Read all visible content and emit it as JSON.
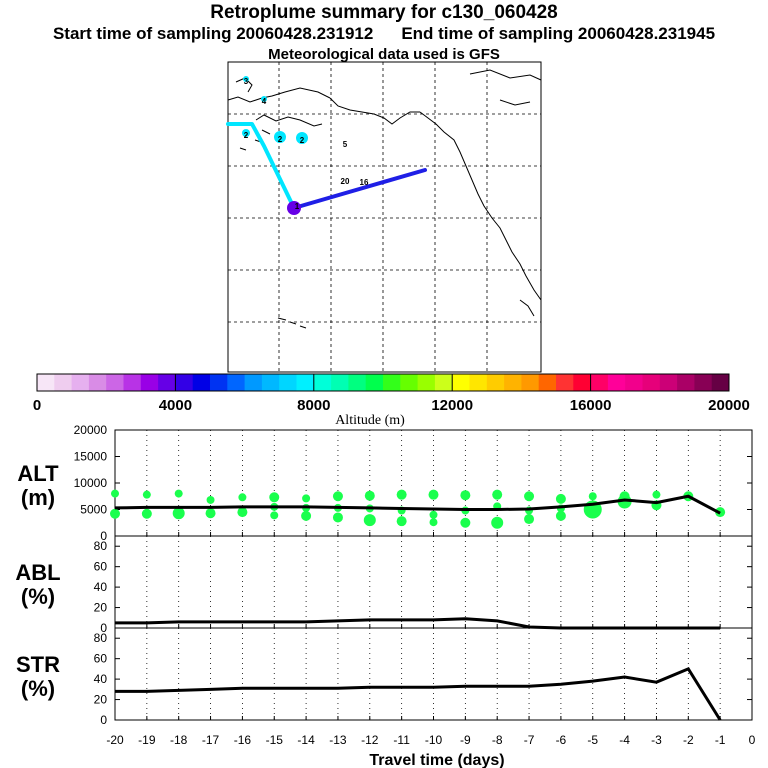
{
  "header": {
    "title": "Retroplume summary for c130_060428",
    "start_label": "Start time of sampling 20060428.231912",
    "end_label": "End time of sampling 20060428.231945",
    "met_label": "Meteorological data used is GFS"
  },
  "map": {
    "trajectory_labels": [
      "3",
      "4",
      "2",
      "2",
      "2",
      "2",
      "5",
      "20",
      "16",
      "1"
    ]
  },
  "colorbar": {
    "title": "Altitude (m)",
    "tick_labels": [
      "0",
      "4000",
      "8000",
      "12000",
      "16000",
      "20000"
    ],
    "min": 0,
    "max": 20000,
    "colors": [
      "#f7e6f7",
      "#efcdef",
      "#e6b0ef",
      "#d98ce6",
      "#cc66e6",
      "#b833e6",
      "#9900e6",
      "#6600e6",
      "#3300e6",
      "#0000e6",
      "#0033f2",
      "#0066ff",
      "#0099ff",
      "#00b8ff",
      "#00d6ff",
      "#00f0ff",
      "#00ffd9",
      "#00ffb3",
      "#00ff80",
      "#00ff4d",
      "#33ff1a",
      "#66ff00",
      "#99ff00",
      "#ccff1a",
      "#ffff00",
      "#ffe600",
      "#ffcc00",
      "#ffb300",
      "#ff9900",
      "#ff6600",
      "#ff3333",
      "#ff0033",
      "#ff0066",
      "#ff0099",
      "#f2008c",
      "#e6007a",
      "#cc0077",
      "#aa0066",
      "#880055",
      "#660044"
    ]
  },
  "chart_data": [
    {
      "type": "scatter",
      "name": "ALT",
      "ylabel": "ALT\n(m)",
      "ylabel_line1": "ALT",
      "ylabel_line2": "(m)",
      "ylim": [
        0,
        20000
      ],
      "yticks": [
        "0",
        "5000",
        "10000",
        "15000",
        "20000"
      ],
      "xlim": [
        -20,
        0
      ],
      "points": [
        {
          "x": -20,
          "y": 8000,
          "size": 4
        },
        {
          "x": -20,
          "y": 4200,
          "size": 5
        },
        {
          "x": -19,
          "y": 7800,
          "size": 4
        },
        {
          "x": -19,
          "y": 4200,
          "size": 5
        },
        {
          "x": -18,
          "y": 8000,
          "size": 4
        },
        {
          "x": -18,
          "y": 4300,
          "size": 6
        },
        {
          "x": -17,
          "y": 6800,
          "size": 4
        },
        {
          "x": -17,
          "y": 4300,
          "size": 5
        },
        {
          "x": -16,
          "y": 7300,
          "size": 4
        },
        {
          "x": -16,
          "y": 4500,
          "size": 5
        },
        {
          "x": -15,
          "y": 7300,
          "size": 5
        },
        {
          "x": -15,
          "y": 5500,
          "size": 4
        },
        {
          "x": -15,
          "y": 3900,
          "size": 4
        },
        {
          "x": -14,
          "y": 7100,
          "size": 4
        },
        {
          "x": -14,
          "y": 5300,
          "size": 4
        },
        {
          "x": -14,
          "y": 3800,
          "size": 5
        },
        {
          "x": -13,
          "y": 7500,
          "size": 5
        },
        {
          "x": -13,
          "y": 5300,
          "size": 4
        },
        {
          "x": -13,
          "y": 3500,
          "size": 5
        },
        {
          "x": -12,
          "y": 7600,
          "size": 5
        },
        {
          "x": -12,
          "y": 5200,
          "size": 4
        },
        {
          "x": -12,
          "y": 3000,
          "size": 6
        },
        {
          "x": -11,
          "y": 7800,
          "size": 5
        },
        {
          "x": -11,
          "y": 4800,
          "size": 4
        },
        {
          "x": -11,
          "y": 2800,
          "size": 5
        },
        {
          "x": -10,
          "y": 7800,
          "size": 5
        },
        {
          "x": -10,
          "y": 4000,
          "size": 4
        },
        {
          "x": -10,
          "y": 2600,
          "size": 4
        },
        {
          "x": -9,
          "y": 7700,
          "size": 5
        },
        {
          "x": -9,
          "y": 4800,
          "size": 4
        },
        {
          "x": -9,
          "y": 2500,
          "size": 5
        },
        {
          "x": -8,
          "y": 7800,
          "size": 5
        },
        {
          "x": -8,
          "y": 5600,
          "size": 4
        },
        {
          "x": -8,
          "y": 2500,
          "size": 6
        },
        {
          "x": -7,
          "y": 7500,
          "size": 5
        },
        {
          "x": -7,
          "y": 4800,
          "size": 4
        },
        {
          "x": -7,
          "y": 3200,
          "size": 5
        },
        {
          "x": -6,
          "y": 7000,
          "size": 5
        },
        {
          "x": -6,
          "y": 5200,
          "size": 4
        },
        {
          "x": -6,
          "y": 3800,
          "size": 5
        },
        {
          "x": -5,
          "y": 7500,
          "size": 4
        },
        {
          "x": -5,
          "y": 5000,
          "size": 9
        },
        {
          "x": -4,
          "y": 7500,
          "size": 5
        },
        {
          "x": -4,
          "y": 6500,
          "size": 7
        },
        {
          "x": -3,
          "y": 7800,
          "size": 4
        },
        {
          "x": -3,
          "y": 5800,
          "size": 5
        },
        {
          "x": -2,
          "y": 7500,
          "size": 5
        },
        {
          "x": -1,
          "y": 4500,
          "size": 5
        }
      ],
      "median_line": {
        "x": [
          -20,
          -19,
          -18,
          -17,
          -16,
          -15,
          -14,
          -13,
          -12,
          -11,
          -10,
          -9,
          -8,
          -7,
          -6,
          -5,
          -4,
          -3,
          -2,
          -1
        ],
        "y": [
          5300,
          5400,
          5400,
          5400,
          5500,
          5500,
          5500,
          5400,
          5300,
          5200,
          5100,
          5000,
          5000,
          5100,
          5500,
          6000,
          6800,
          6300,
          7500,
          4300
        ]
      }
    },
    {
      "type": "line",
      "name": "ABL",
      "ylabel_line1": "ABL",
      "ylabel_line2": "(%)",
      "ylim": [
        0,
        90
      ],
      "yticks": [
        "0",
        "20",
        "40",
        "60",
        "80"
      ],
      "xlim": [
        -20,
        0
      ],
      "x": [
        -20,
        -19,
        -18,
        -17,
        -16,
        -15,
        -14,
        -13,
        -12,
        -11,
        -10,
        -9,
        -8,
        -7,
        -6,
        -5,
        -4,
        -3,
        -2,
        -1
      ],
      "values": [
        5,
        5,
        6,
        6,
        6,
        6,
        6,
        7,
        8,
        8,
        8,
        9,
        7,
        1,
        0,
        0,
        0,
        0,
        0,
        0
      ]
    },
    {
      "type": "line",
      "name": "STR",
      "ylabel_line1": "STR",
      "ylabel_line2": "(%)",
      "ylim": [
        0,
        90
      ],
      "yticks": [
        "0",
        "20",
        "40",
        "60",
        "80"
      ],
      "xlim": [
        -20,
        0
      ],
      "xlabel": "Travel time (days)",
      "xtick_labels": [
        "-20",
        "-19",
        "-18",
        "-17",
        "-16",
        "-15",
        "-14",
        "-13",
        "-12",
        "-11",
        "-10",
        "-9",
        "-8",
        "-7",
        "-6",
        "-5",
        "-4",
        "-3",
        "-2",
        "-1",
        "0"
      ],
      "x": [
        -20,
        -19,
        -18,
        -17,
        -16,
        -15,
        -14,
        -13,
        -12,
        -11,
        -10,
        -9,
        -8,
        -7,
        -6,
        -5,
        -4,
        -3,
        -2,
        -1
      ],
      "values": [
        28,
        28,
        29,
        30,
        31,
        31,
        31,
        31,
        32,
        32,
        32,
        33,
        33,
        33,
        35,
        38,
        42,
        37,
        50,
        0
      ]
    }
  ]
}
